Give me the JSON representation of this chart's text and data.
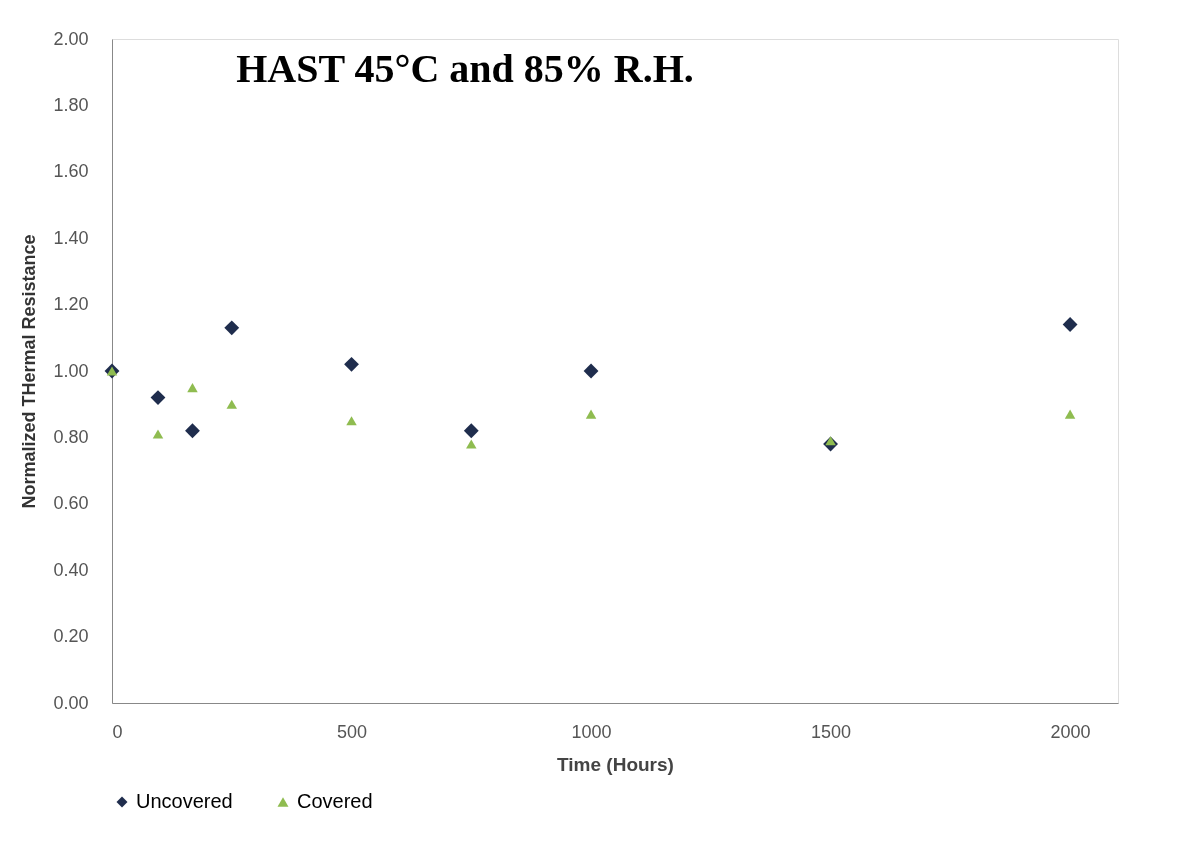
{
  "chart_data": {
    "type": "scatter",
    "title": "HAST 45°C and 85% R.H.",
    "xlabel": "Time (Hours)",
    "ylabel": "Normalized THermal Resistance",
    "x": [
      0,
      96,
      168,
      250,
      500,
      750,
      1000,
      1500,
      2000
    ],
    "series": [
      {
        "name": "Uncovered",
        "color": "#1f2d4d",
        "marker": "diamond",
        "values": [
          1.0,
          0.92,
          0.82,
          1.13,
          1.02,
          0.82,
          1.0,
          0.78,
          1.14
        ]
      },
      {
        "name": "Covered",
        "color": "#8fbc50",
        "marker": "triangle",
        "values": [
          1.0,
          0.81,
          0.95,
          0.9,
          0.85,
          0.78,
          0.87,
          0.79,
          0.87
        ]
      }
    ],
    "xlim": [
      0,
      2100
    ],
    "xticks": [
      0,
      500,
      1000,
      1500,
      2000
    ],
    "ylim": [
      0,
      2
    ],
    "yticks": [
      {
        "value": 0,
        "label": "0.00"
      },
      {
        "value": 0.2,
        "label": "0.20"
      },
      {
        "value": 0.4,
        "label": "0.40"
      },
      {
        "value": 0.6,
        "label": "0.60"
      },
      {
        "value": 0.8,
        "label": "0.80"
      },
      {
        "value": 1.0,
        "label": "1.00"
      },
      {
        "value": 1.2,
        "label": "1.20"
      },
      {
        "value": 1.4,
        "label": "1.40"
      },
      {
        "value": 1.6,
        "label": "1.60"
      },
      {
        "value": 1.8,
        "label": "1.80"
      },
      {
        "value": 2.0,
        "label": "2.00"
      }
    ],
    "grid": false,
    "legend": "bottom"
  }
}
